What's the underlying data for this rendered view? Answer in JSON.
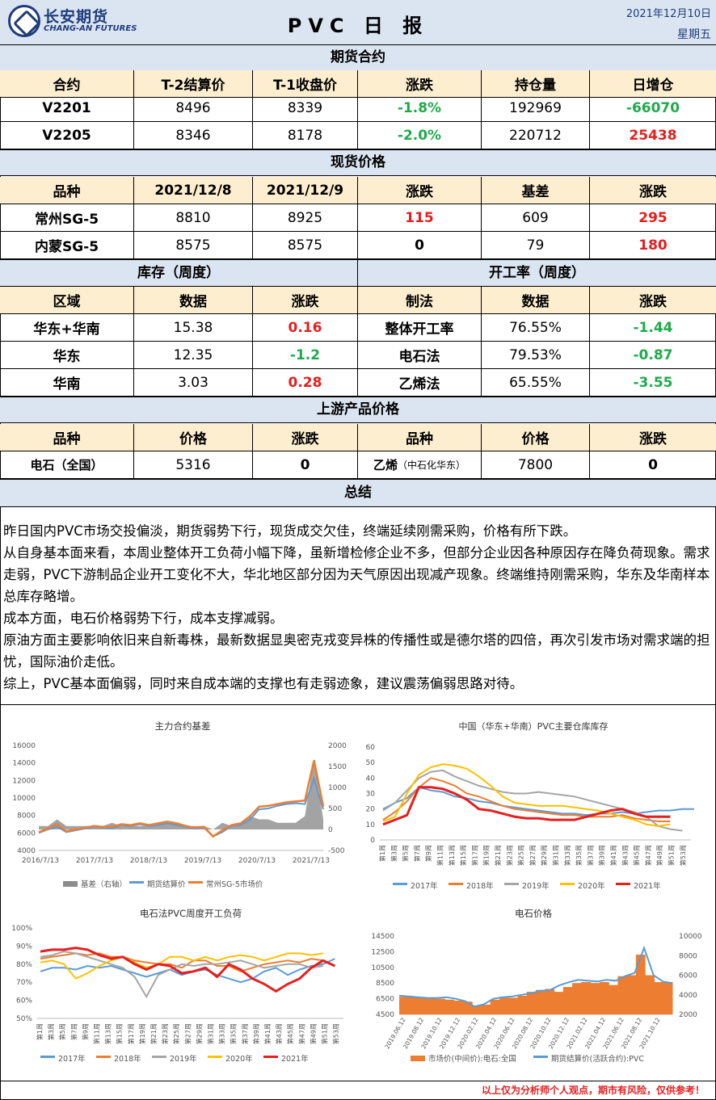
{
  "header": {
    "logo_cn": "长安期货",
    "logo_en": "CHANG-AN FUTURES",
    "title": "PVC 日 报",
    "date": "2021年12月10日",
    "weekday": "星期五"
  },
  "futures": {
    "section": "期货合约",
    "headers": [
      "合约",
      "T-2结算价",
      "T-1收盘价",
      "涨跌",
      "持仓量",
      "日增仓"
    ],
    "rows": [
      [
        "V2201",
        "8496",
        "8339",
        "-1.8%",
        "192969",
        "-66070"
      ],
      [
        "V2205",
        "8346",
        "8178",
        "-2.0%",
        "220712",
        "25438"
      ]
    ]
  },
  "spot": {
    "section": "现货价格",
    "headers": [
      "品种",
      "2021/12/8",
      "2021/12/9",
      "涨跌",
      "基差",
      "涨跌"
    ],
    "rows": [
      [
        "常州SG-5",
        "8810",
        "8925",
        "115",
        "609",
        "295"
      ],
      [
        "内蒙SG-5",
        "8575",
        "8575",
        "0",
        "79",
        "180"
      ]
    ]
  },
  "inventory": {
    "section": "库存（周度）",
    "headers": [
      "区域",
      "数据",
      "涨跌"
    ],
    "rows": [
      [
        "华东+华南",
        "15.38",
        "0.16"
      ],
      [
        "华东",
        "12.35",
        "-1.2"
      ],
      [
        "华南",
        "3.03",
        "0.28"
      ]
    ]
  },
  "operating": {
    "section": "开工率（周度）",
    "headers": [
      "制法",
      "数据",
      "涨跌"
    ],
    "rows": [
      [
        "整体开工率",
        "76.55%",
        "-1.44"
      ],
      [
        "电石法",
        "79.53%",
        "-0.87"
      ],
      [
        "乙烯法",
        "65.55%",
        "-3.55"
      ]
    ]
  },
  "upstream": {
    "section": "上游产品价格",
    "headers": [
      "品种",
      "价格",
      "涨跌",
      "品种",
      "价格",
      "涨跌"
    ],
    "row": {
      "name1": "电石（全国）",
      "price1": "5316",
      "chg1": "0",
      "name2_main": "乙烯",
      "name2_sub": "（中石化华东）",
      "price2": "7800",
      "chg2": "0"
    }
  },
  "summary": {
    "section": "总结",
    "paragraphs": [
      "昨日国内PVC市场交投偏淡，期货弱势下行，现货成交欠佳，终端延续刚需采购，价格有所下跌。",
      "从自身基本面来看，本周业整体开工负荷小幅下降，虽新增检修企业不多，但部分企业因各种原因存在降负荷现象。需求走弱，PVC下游制品企业开工变化不大，华北地区部分因为天气原因出现减产现象。终端维持刚需采购，华东及华南样本总库存略增。",
      "成本方面，电石价格弱势下行，成本支撑减弱。",
      "原油方面主要影响依旧来自新毒株，最新数据显奥密克戎变异株的传播性或是德尔塔的四倍，再次引发市场对需求端的担忧，国际油价走低。",
      "综上，PVC基本面偏弱，同时来自成本端的支撑也有走弱迹象，建议震荡偏弱思路对待。"
    ]
  },
  "chart_data": [
    {
      "type": "line",
      "title": "主力合约基差",
      "x_ticks": [
        "2016/7/13",
        "2017/7/13",
        "2018/7/13",
        "2019/7/13",
        "2020/7/13",
        "2021/7/13"
      ],
      "ylim": [
        4000,
        16000
      ],
      "y_ticks": [
        "16000",
        "14000",
        "12000",
        "10000",
        "8000",
        "6000",
        "4000"
      ],
      "y2lim": [
        -500,
        2000
      ],
      "y2_ticks": [
        "2000",
        "1500",
        "1000",
        "500",
        "0",
        "-500"
      ],
      "series": [
        {
          "name": "基差（右轴）",
          "color": "#8c8c8c",
          "kind": "area",
          "axis": "right"
        },
        {
          "name": "期货结算价",
          "color": "#5b9bd5",
          "axis": "left",
          "values": [
            6000,
            6400,
            6700,
            6100,
            6300,
            6500,
            6700,
            6600,
            6500,
            6900,
            6800,
            7000,
            6800,
            6900,
            7100,
            6900,
            6700,
            6500,
            6600,
            5600,
            6100,
            6800,
            6900,
            7500,
            8700,
            8800,
            9100,
            9300,
            9400,
            9300,
            12200,
            8700
          ]
        },
        {
          "name": "常州SG-5市场价",
          "color": "#ed7d31",
          "axis": "left",
          "values": [
            6100,
            6500,
            7000,
            6200,
            6400,
            6600,
            6800,
            6700,
            6700,
            7000,
            6900,
            7100,
            6900,
            7100,
            7300,
            7100,
            6800,
            6600,
            6700,
            5600,
            6300,
            6900,
            7100,
            7900,
            9000,
            9100,
            9300,
            9500,
            9600,
            9700,
            14300,
            9000
          ]
        }
      ]
    },
    {
      "type": "line",
      "title": "中国（华东+华南）PVC主要仓库库存",
      "x_ticks": [
        "第1周",
        "第3周",
        "第5周",
        "第7周",
        "第9周",
        "第11周",
        "第13周",
        "第15周",
        "第17周",
        "第19周",
        "第21周",
        "第23周",
        "第25周",
        "第27周",
        "第29周",
        "第31周",
        "第33周",
        "第35周",
        "第37周",
        "第39周",
        "第41周",
        "第43周",
        "第45周",
        "第47周",
        "第49周",
        "第51周",
        "第53周"
      ],
      "ylim": [
        0,
        60
      ],
      "y_ticks": [
        "60",
        "50",
        "40",
        "30",
        "20",
        "10",
        "0"
      ],
      "series": [
        {
          "name": "2017年",
          "color": "#5b9bd5",
          "values": [
            20,
            24,
            27,
            34,
            32,
            31,
            28,
            27,
            25,
            24,
            22,
            21,
            20,
            19,
            18,
            17,
            17,
            16,
            17,
            17,
            18,
            17,
            18,
            19,
            19,
            20,
            20
          ]
        },
        {
          "name": "2018年",
          "color": "#ed7d31",
          "values": [
            13,
            18,
            25,
            34,
            40,
            38,
            35,
            30,
            28,
            25,
            22,
            20,
            19,
            18,
            17,
            16,
            16,
            15,
            15,
            15,
            16,
            14,
            13,
            12,
            12
          ]
        },
        {
          "name": "2019年",
          "color": "#a5a5a5",
          "values": [
            19,
            24,
            32,
            40,
            44,
            45,
            41,
            38,
            35,
            33,
            31,
            30,
            30,
            31,
            30,
            29,
            28,
            26,
            24,
            22,
            20,
            18,
            15,
            9,
            7,
            6
          ]
        },
        {
          "name": "2020年",
          "color": "#ffc000",
          "values": [
            12,
            15,
            30,
            42,
            47,
            49,
            48,
            46,
            41,
            35,
            28,
            24,
            23,
            22,
            22,
            22,
            21,
            20,
            19,
            17,
            15,
            13,
            10,
            9,
            10
          ]
        },
        {
          "name": "2021年",
          "color": "#e61e1e",
          "values": [
            10,
            13,
            16,
            34,
            34,
            33,
            30,
            26,
            20,
            19,
            17,
            15,
            14,
            14,
            13,
            13,
            13,
            15,
            17,
            19,
            20,
            17,
            15,
            15,
            15
          ]
        }
      ]
    },
    {
      "type": "line",
      "title": "电石法PVC周度开工负荷",
      "x_ticks": [
        "第1周",
        "第3周",
        "第5周",
        "第7周",
        "第9周",
        "第11周",
        "第13周",
        "第15周",
        "第17周",
        "第19周",
        "第21周",
        "第23周",
        "第25周",
        "第27周",
        "第29周",
        "第31周",
        "第33周",
        "第35周",
        "第37周",
        "第39周",
        "第41周",
        "第43周",
        "第45周",
        "第47周",
        "第49周",
        "第51周",
        "第53周"
      ],
      "ylim": [
        50,
        100
      ],
      "y_ticks": [
        "100%",
        "90%",
        "80%",
        "70%",
        "60%",
        "50%"
      ],
      "series": [
        {
          "name": "2017年",
          "color": "#5b9bd5",
          "values": [
            76,
            78,
            78,
            77,
            79,
            78,
            79,
            77,
            75,
            73,
            75,
            77,
            74,
            76,
            77,
            74,
            72,
            70,
            72,
            76,
            78,
            74,
            77,
            79,
            80,
            83
          ]
        },
        {
          "name": "2018年",
          "color": "#ed7d31",
          "values": [
            83,
            84,
            85,
            86,
            85,
            86,
            84,
            84,
            82,
            81,
            80,
            80,
            78,
            82,
            82,
            79,
            79,
            76,
            78,
            80,
            81,
            82,
            81,
            83,
            82
          ]
        },
        {
          "name": "2019年",
          "color": "#a5a5a5",
          "values": [
            84,
            85,
            87,
            86,
            84,
            82,
            80,
            78,
            73,
            62,
            74,
            77,
            80,
            79,
            80,
            80,
            81,
            82,
            80,
            78,
            79,
            80,
            80,
            78,
            79
          ]
        },
        {
          "name": "2020年",
          "color": "#ffc000",
          "values": [
            81,
            82,
            80,
            72,
            75,
            79,
            82,
            84,
            81,
            78,
            80,
            84,
            84,
            82,
            84,
            82,
            84,
            85,
            84,
            82,
            84,
            86,
            86,
            85,
            86
          ]
        },
        {
          "name": "2021年",
          "color": "#e61e1e",
          "values": [
            87,
            88,
            88,
            89,
            88,
            85,
            83,
            84,
            80,
            77,
            80,
            79,
            75,
            76,
            78,
            73,
            80,
            77,
            72,
            69,
            65,
            69,
            72,
            78,
            82,
            79
          ]
        }
      ]
    },
    {
      "type": "bar",
      "title": "电石价格",
      "x_ticks": [
        "2019.06.12",
        "2019.08.12",
        "2019.10.12",
        "2019.12.12",
        "2020.02.12",
        "2020.04.12",
        "2020.06.12",
        "2020.08.12",
        "2020.10.12",
        "2020.12.12",
        "2021.02.12",
        "2021.04.12",
        "2021.06.12",
        "2021.08.12",
        "2021.10.12"
      ],
      "ylim": [
        4500,
        14500
      ],
      "y_ticks": [
        "14500",
        "12500",
        "10500",
        "8500",
        "6500",
        "4500"
      ],
      "y2lim": [
        2000,
        10000
      ],
      "y2_ticks": [
        "10000",
        "8000",
        "6000",
        "4000",
        "2000"
      ],
      "series": [
        {
          "name": "市场价(中间价):电石:全国",
          "color": "#ed7d31",
          "kind": "bar",
          "axis": "right",
          "values": [
            3800,
            3800,
            3700,
            3700,
            3600,
            3500,
            3400,
            3300,
            2900,
            3000,
            3500,
            3700,
            3700,
            3900,
            4300,
            4500,
            4600,
            4300,
            4800,
            5200,
            5300,
            5200,
            5300,
            5000,
            5900,
            6000,
            8100,
            6000,
            5300,
            5300
          ]
        },
        {
          "name": "期货结算价(活跃合约):PVC",
          "color": "#5b9bd5",
          "kind": "line",
          "axis": "left",
          "values": [
            6900,
            6800,
            6700,
            6600,
            6600,
            6700,
            6500,
            6200,
            5500,
            5800,
            6500,
            6700,
            6800,
            7000,
            7200,
            7500,
            7600,
            8200,
            8600,
            8900,
            8800,
            8700,
            8900,
            8800,
            9400,
            9800,
            13000,
            9500,
            8700,
            8500
          ]
        }
      ]
    }
  ],
  "footer": "以上仅为分析师个人观点，期市有风险，仅供参考！"
}
